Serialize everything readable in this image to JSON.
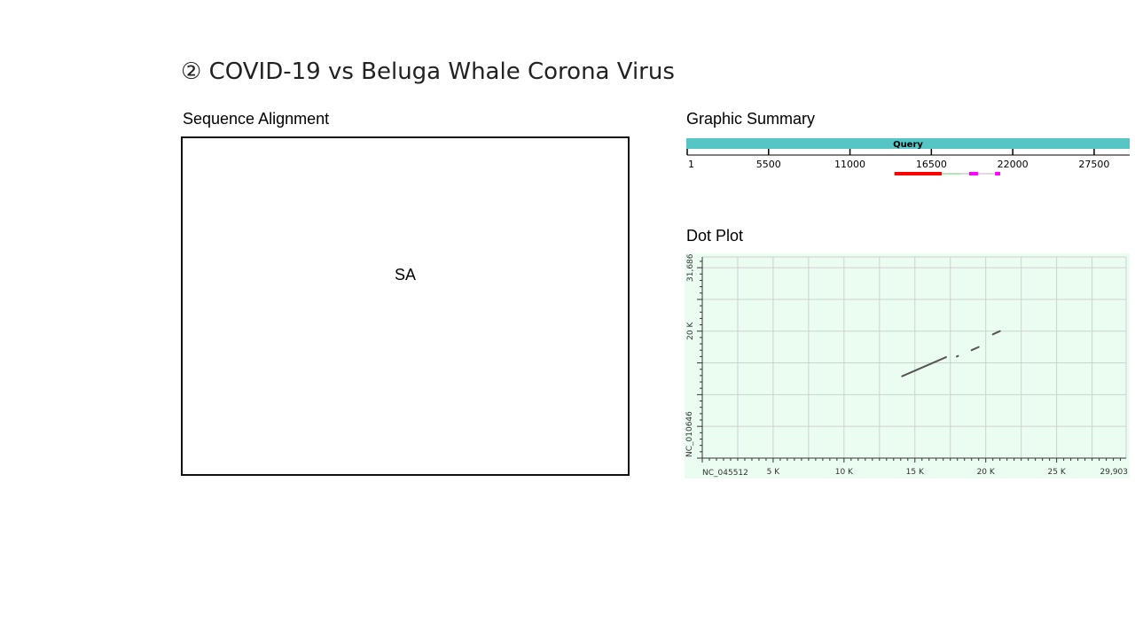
{
  "slide": {
    "title": "② COVID-19 vs Beluga Whale Corona Virus"
  },
  "sequence_alignment": {
    "label": "Sequence Alignment",
    "placeholder": "SA"
  },
  "graphic_summary": {
    "label": "Graphic Summary",
    "bar_label": "Query",
    "ticks": [
      "1",
      "5500",
      "11000",
      "16500",
      "22000",
      "27500"
    ],
    "tick_values": [
      1,
      5500,
      11000,
      16500,
      22000,
      27500
    ],
    "axis_max": 29903,
    "hits": [
      {
        "start": 14000,
        "end": 17200,
        "color": "#ff0000"
      },
      {
        "start": 17200,
        "end": 18500,
        "color": "#66cc66"
      },
      {
        "start": 18500,
        "end": 20800,
        "color": "#b8b8b8"
      },
      {
        "start": 19050,
        "end": 19650,
        "color": "#ff00ff"
      },
      {
        "start": 20800,
        "end": 21150,
        "color": "#ff00ff"
      }
    ],
    "colors": {
      "query_bar": "#55c5c5"
    }
  },
  "dot_plot": {
    "label": "Dot Plot",
    "chart_data": {
      "type": "scatter",
      "xlabel": "NC_045512",
      "ylabel": "NC_010646",
      "x_tick_labels": [
        "5 K",
        "10 K",
        "15 K",
        "20 K",
        "25 K",
        "29,903"
      ],
      "x_tick_values": [
        5000,
        10000,
        15000,
        20000,
        25000,
        29903
      ],
      "y_tick_labels": [
        "20 K",
        "31,686"
      ],
      "y_tick_values": [
        20000,
        31686
      ],
      "xlim": [
        0,
        29903
      ],
      "ylim": [
        0,
        31686
      ],
      "segments": [
        {
          "x": [
            14100,
            17200
          ],
          "y": [
            12900,
            15900
          ]
        },
        {
          "x": [
            17950,
            18050
          ],
          "y": [
            16000,
            16100
          ]
        },
        {
          "x": [
            19000,
            19500
          ],
          "y": [
            17000,
            17500
          ]
        },
        {
          "x": [
            20500,
            21000
          ],
          "y": [
            19500,
            20000
          ]
        }
      ],
      "grid": true
    },
    "colors": {
      "background": "#ebfdf1",
      "grid": "#d0d0d0",
      "line": "#555555"
    }
  }
}
